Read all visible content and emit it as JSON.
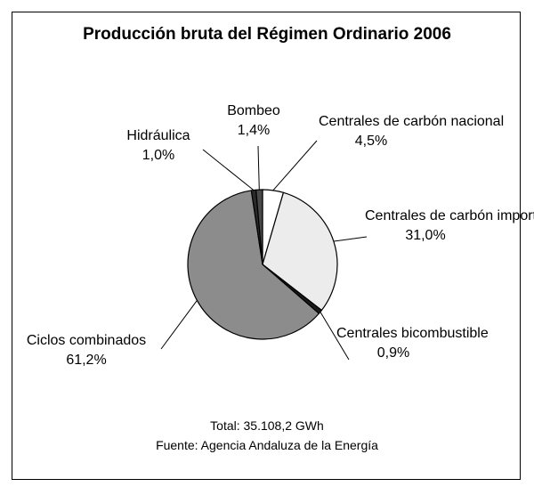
{
  "chart_data": {
    "type": "pie",
    "title": "Producción bruta del Régimen Ordinario 2006",
    "slices": [
      {
        "label": "Centrales de carbón nacional",
        "value": 4.5,
        "display_value": "4,5%",
        "color": "#ffffff"
      },
      {
        "label": "Centrales de carbón importado",
        "value": 31.0,
        "display_value": "31,0%",
        "color": "#ececec"
      },
      {
        "label": "Centrales bicombustible",
        "value": 0.9,
        "display_value": "0,9%",
        "color": "#1a1a1a"
      },
      {
        "label": "Ciclos combinados",
        "value": 61.2,
        "display_value": "61,2%",
        "color": "#8c8c8c"
      },
      {
        "label": "Hidráulica",
        "value": 1.0,
        "display_value": "1,0%",
        "color": "#2a2a2a"
      },
      {
        "label": "Bombeo",
        "value": 1.4,
        "display_value": "1,4%",
        "color": "#4a4a4a"
      }
    ]
  },
  "footer": {
    "total": "Total: 35.108,2 GWh",
    "source": "Fuente: Agencia Andaluza de la Energía"
  }
}
